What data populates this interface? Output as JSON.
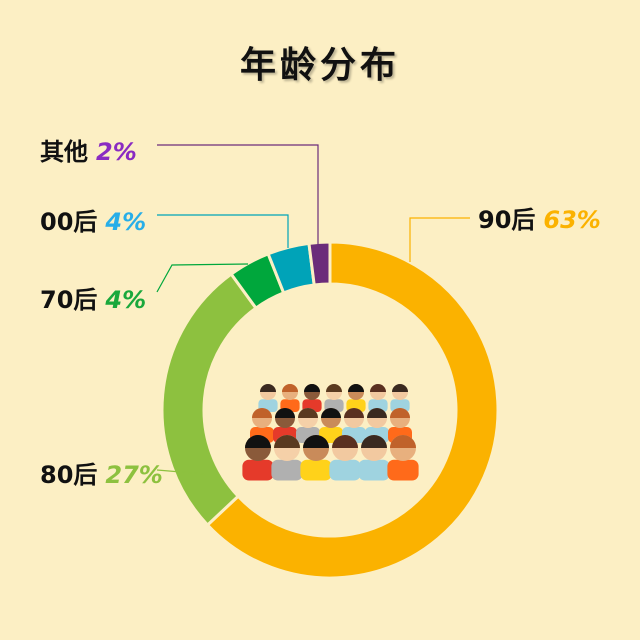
{
  "chart_data": {
    "type": "pie",
    "title": "年龄分布",
    "donut": true,
    "start": "top",
    "direction": "clockwise",
    "slices": [
      {
        "label": "90后",
        "value": 63,
        "display": "63%",
        "color": "#fbb200"
      },
      {
        "label": "80后",
        "value": 27,
        "display": "27%",
        "color": "#8dc13f"
      },
      {
        "label": "70后",
        "value": 4,
        "display": "4%",
        "color": "#00a73c"
      },
      {
        "label": "00后",
        "value": 4,
        "display": "4%",
        "color": "#00a3b8"
      },
      {
        "label": "其他",
        "value": 2,
        "display": "2%",
        "color": "#6b2c7a"
      }
    ],
    "label_colors": {
      "90后": "#fbb200",
      "80后": "#8dc13f",
      "70后": "#1aa83c",
      "00后": "#28aee8",
      "其他": "#8a2bc2"
    },
    "center_image": "crowd-of-people-illustration"
  }
}
